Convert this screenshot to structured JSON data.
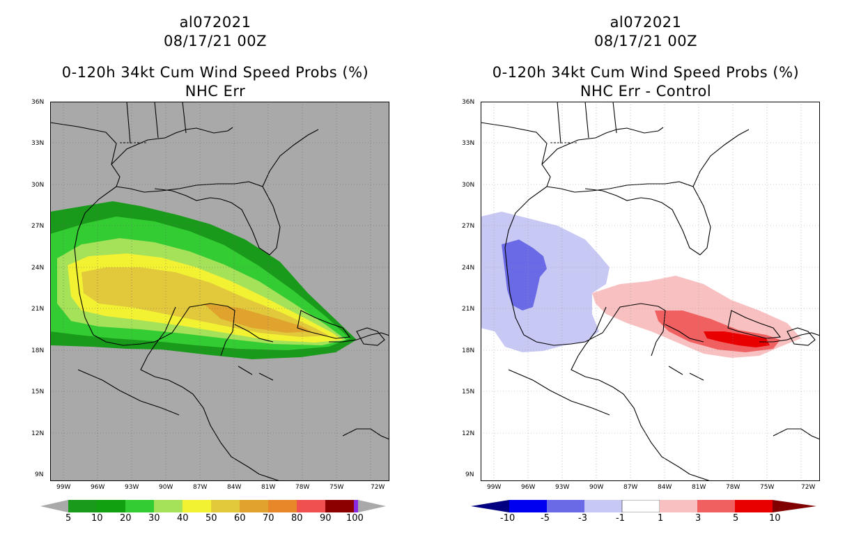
{
  "left": {
    "storm_id": "al072021",
    "datetime": "08/17/21 00Z",
    "product": "0-120h 34kt Cum Wind Speed Probs (%)",
    "subtitle": "NHC Err",
    "colorbar": {
      "labels": [
        "5",
        "10",
        "20",
        "30",
        "40",
        "50",
        "60",
        "70",
        "80",
        "90",
        "100"
      ],
      "colors": [
        "#1a9a1a",
        "#10a010",
        "#33cc33",
        "#a6e15a",
        "#f2f233",
        "#e2c93c",
        "#e0a32e",
        "#e8862a",
        "#f05050",
        "#8c0000",
        "#8a2be2"
      ]
    },
    "background": "#a9a9a9"
  },
  "right": {
    "storm_id": "al072021",
    "datetime": "08/17/21 00Z",
    "product": "0-120h 34kt Cum Wind Speed Probs (%)",
    "subtitle": "NHC Err - Control",
    "colorbar": {
      "labels": [
        "-10",
        "-5",
        "-3",
        "-1",
        "1",
        "3",
        "5",
        "10"
      ],
      "colors": [
        "#000080",
        "#0000f0",
        "#6a6ae6",
        "#c8c8f5",
        "#ffffff",
        "#f8c0c0",
        "#f06060",
        "#e80000",
        "#800000"
      ]
    },
    "background": "#ffffff"
  },
  "axes": {
    "lat_labels": [
      "36N",
      "33N",
      "30N",
      "27N",
      "24N",
      "21N",
      "18N",
      "15N",
      "12N",
      "9N"
    ],
    "lon_labels": [
      "99W",
      "96W",
      "93W",
      "90W",
      "87W",
      "84W",
      "81W",
      "78W",
      "75W",
      "72W"
    ]
  }
}
